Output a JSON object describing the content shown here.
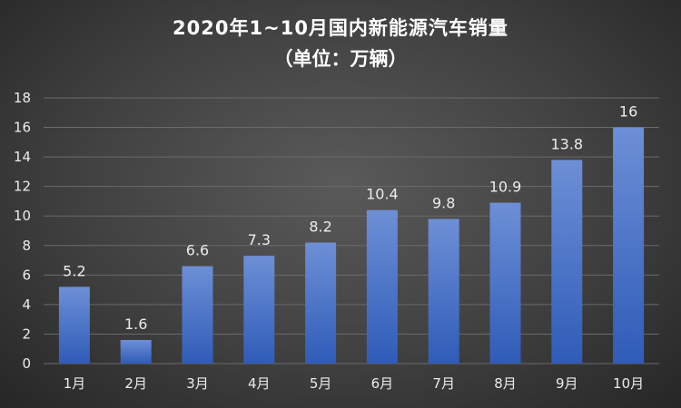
{
  "chart_data": {
    "type": "bar",
    "title": "2020年1~10月国内新能源汽车销量",
    "subtitle": "（单位：万辆）",
    "categories": [
      "1月",
      "2月",
      "3月",
      "4月",
      "5月",
      "6月",
      "7月",
      "8月",
      "9月",
      "10月"
    ],
    "values": [
      5.2,
      1.6,
      6.6,
      7.3,
      8.2,
      10.4,
      9.8,
      10.9,
      13.8,
      16
    ],
    "data_labels": [
      "5.2",
      "1.6",
      "6.6",
      "7.3",
      "8.2",
      "10.4",
      "9.8",
      "10.9",
      "13.8",
      "16"
    ],
    "ylim": [
      0,
      18
    ],
    "yticks": [
      0,
      2,
      4,
      6,
      8,
      10,
      12,
      14,
      16,
      18
    ],
    "grid": true,
    "legend": "none",
    "colors": {
      "bar_top": "#6d8fd6",
      "bar_bottom": "#2f5cb8"
    }
  }
}
